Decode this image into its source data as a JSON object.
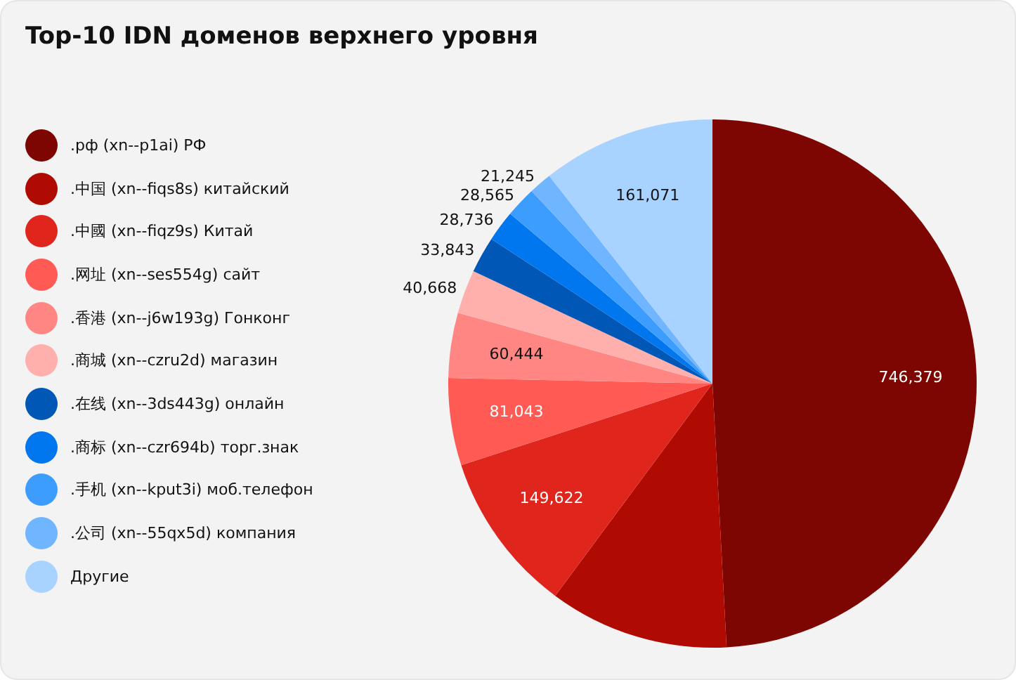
{
  "chart_data": {
    "type": "pie",
    "title": "Top-10 IDN доменов верхнего уровня",
    "categories": [
      ".рф (xn--p1ai) РФ",
      ".中国 (xn--fiqs8s) китайский",
      ".中國 (xn--fiqz9s) Китай",
      ".网址 (xn--ses554g) сайт",
      ".香港 (xn--j6w193g) Гонконг",
      ".商城 (xn--czru2d) магазин",
      ".在线 (xn--3ds443g) онлайн",
      ".商标 (xn--czr694b) торг.знак",
      ".手机 (xn--kput3i) моб.телефон",
      ".公司 (xn--55qx5d) компания",
      "Другие"
    ],
    "values": [
      746379,
      167000,
      149622,
      81043,
      60444,
      40668,
      33843,
      28736,
      28565,
      21245,
      161071
    ],
    "value_labels": [
      "746,379",
      null,
      "149,622",
      "81,043",
      "60,444",
      "40,668",
      "33,843",
      "28,736",
      "28,565",
      "21,245",
      "161,071"
    ],
    "colors": [
      "#7d0602",
      "#b00b02",
      "#e0251d",
      "#ff5a53",
      "#ff8682",
      "#ffb0ad",
      "#0057b5",
      "#0077ee",
      "#3d9dff",
      "#70b5ff",
      "#a8d2ff"
    ],
    "legend": "left"
  }
}
